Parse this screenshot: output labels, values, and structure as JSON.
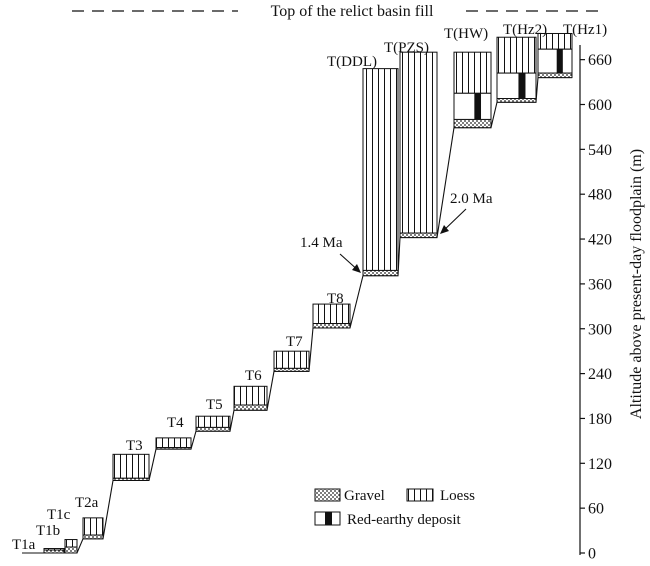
{
  "chart_data": {
    "type": "diagram",
    "top_label": "Top of the relict basin fill",
    "ylabel": "Altitude above present-day floodplain (m)",
    "ylim": [
      0,
      720
    ],
    "yticks": [
      0,
      60,
      120,
      180,
      240,
      300,
      360,
      420,
      480,
      540,
      600,
      660
    ],
    "terraces": [
      {
        "label": "T1a",
        "x": [
          22,
          42
        ],
        "gravel": [
          0,
          0
        ],
        "loess": [
          0,
          0
        ],
        "red": [
          0,
          0
        ]
      },
      {
        "label": "T1b",
        "x": [
          44,
          64
        ],
        "gravel": [
          0,
          4
        ],
        "loess": [
          4,
          6
        ],
        "red": [
          0,
          0
        ]
      },
      {
        "label": "T1c",
        "x": [
          65,
          77
        ],
        "gravel": [
          0,
          8
        ],
        "loess": [
          8,
          18
        ],
        "red": [
          0,
          0
        ]
      },
      {
        "label": "T2a",
        "x": [
          83,
          103
        ],
        "gravel": [
          19,
          24
        ],
        "loess": [
          24,
          47
        ],
        "red": [
          0,
          0
        ]
      },
      {
        "label": "T3",
        "x": [
          113,
          149
        ],
        "gravel": [
          97,
          100
        ],
        "loess": [
          100,
          132
        ],
        "red": [
          0,
          0
        ]
      },
      {
        "label": "T4",
        "x": [
          156,
          191
        ],
        "gravel": [
          139,
          141
        ],
        "loess": [
          141,
          154
        ],
        "red": [
          0,
          0
        ]
      },
      {
        "label": "T5",
        "x": [
          196,
          230
        ],
        "gravel": [
          163,
          168
        ],
        "loess": [
          168,
          183
        ],
        "red": [
          0,
          0
        ]
      },
      {
        "label": "T6",
        "x": [
          234,
          267
        ],
        "gravel": [
          191,
          198
        ],
        "loess": [
          198,
          223
        ],
        "red": [
          0,
          0
        ]
      },
      {
        "label": "T7",
        "x": [
          274,
          309
        ],
        "gravel": [
          243,
          247
        ],
        "loess": [
          247,
          270
        ],
        "red": [
          0,
          0
        ]
      },
      {
        "label": "T8",
        "x": [
          313,
          350
        ],
        "gravel": [
          301,
          307
        ],
        "loess": [
          307,
          333
        ],
        "red": [
          0,
          0
        ]
      },
      {
        "label": "T(DDL)",
        "x": [
          363,
          398
        ],
        "gravel": [
          371,
          378
        ],
        "loess": [
          378,
          648
        ],
        "red": [
          0,
          0
        ]
      },
      {
        "label": "T(PZS)",
        "x": [
          400,
          437
        ],
        "gravel": [
          422,
          428
        ],
        "loess": [
          428,
          670
        ],
        "red": [
          0,
          0
        ]
      },
      {
        "label": "T(HW)",
        "x": [
          454,
          491
        ],
        "gravel": [
          569,
          580
        ],
        "loess": [
          615,
          670
        ],
        "red": [
          580,
          615
        ]
      },
      {
        "label": "T(Hz2)",
        "x": [
          497,
          536
        ],
        "gravel": [
          603,
          608
        ],
        "loess": [
          642,
          690
        ],
        "red": [
          608,
          642
        ]
      },
      {
        "label": "T(Hz1)",
        "x": [
          538,
          572
        ],
        "gravel": [
          636,
          642
        ],
        "loess": [
          674,
          695
        ],
        "red": [
          642,
          674
        ]
      }
    ],
    "annotations": [
      {
        "text": "1.4 Ma",
        "target": "T(DDL)"
      },
      {
        "text": "2.0 Ma",
        "target": "T(PZS)"
      }
    ],
    "legend": [
      "Gravel",
      "Loess",
      "Red-earthy deposit"
    ]
  }
}
